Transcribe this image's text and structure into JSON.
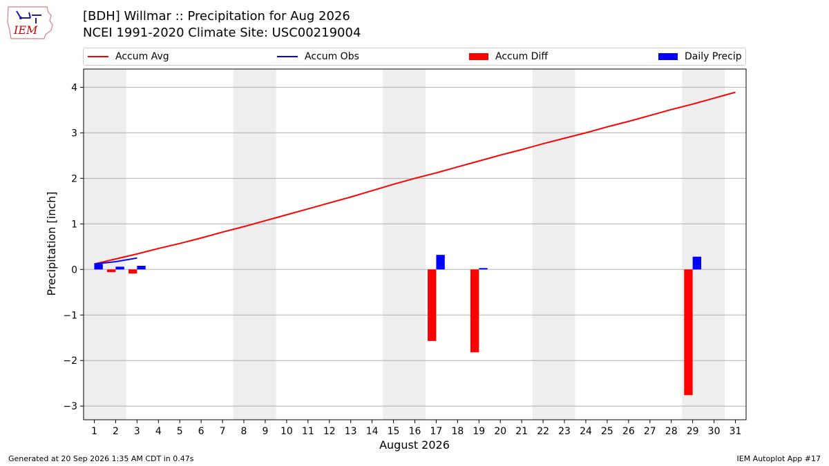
{
  "header": {
    "logo_text": "IEM",
    "title_line1": "[BDH] Willmar :: Precipitation for Aug 2026",
    "title_line2": "NCEI 1991-2020 Climate Site: USC00219004"
  },
  "footer": {
    "left": "Generated at 20 Sep 2026 1:35 AM CDT in 0.47s",
    "right": "IEM Autoplot App #17"
  },
  "colors": {
    "avg": "#ff0000",
    "obs": "#0000ff",
    "diff": "#ff0000",
    "daily": "#0000ff",
    "weekend_band": "#eeeeee",
    "grid": "#b0b0b0"
  },
  "chart_data": {
    "type": "bar",
    "xlabel": "August 2026",
    "ylabel": "Precipitation [inch]",
    "xlim": [
      0.5,
      31.5
    ],
    "ylim": [
      -3.3,
      4.4
    ],
    "yticks": [
      -3,
      -2,
      -1,
      0,
      1,
      2,
      3,
      4
    ],
    "grid": true,
    "legend_position": "top",
    "shaded_weekends": [
      [
        1,
        2
      ],
      [
        8,
        9
      ],
      [
        15,
        16
      ],
      [
        22,
        23
      ],
      [
        29,
        30
      ]
    ],
    "series": [
      {
        "name": "Accum Avg",
        "kind": "line",
        "x": [
          1,
          2,
          3,
          4,
          5,
          6,
          7,
          8,
          9,
          10,
          11,
          12,
          13,
          14,
          15,
          16,
          17,
          18,
          19,
          20,
          21,
          22,
          23,
          24,
          25,
          26,
          27,
          28,
          29,
          30,
          31
        ],
        "values": [
          0.12,
          0.23,
          0.34,
          0.46,
          0.57,
          0.69,
          0.82,
          0.94,
          1.07,
          1.2,
          1.33,
          1.46,
          1.59,
          1.73,
          1.87,
          2.0,
          2.12,
          2.25,
          2.38,
          2.51,
          2.63,
          2.76,
          2.88,
          3.0,
          3.13,
          3.25,
          3.38,
          3.51,
          3.63,
          3.76,
          3.89
        ]
      },
      {
        "name": "Accum Obs",
        "kind": "line",
        "x": [
          1,
          2,
          3
        ],
        "values": [
          0.12,
          0.17,
          0.25
        ]
      },
      {
        "name": "Accum Diff",
        "kind": "bar",
        "x": [
          2,
          3,
          17,
          19,
          29
        ],
        "values": [
          -0.06,
          -0.09,
          -1.57,
          -1.82,
          -2.76
        ]
      },
      {
        "name": "Daily Precip",
        "kind": "bar",
        "x": [
          1,
          2,
          3,
          17,
          19,
          29
        ],
        "values": [
          0.12,
          0.06,
          0.08,
          0.32,
          0.03,
          0.28
        ]
      }
    ]
  }
}
